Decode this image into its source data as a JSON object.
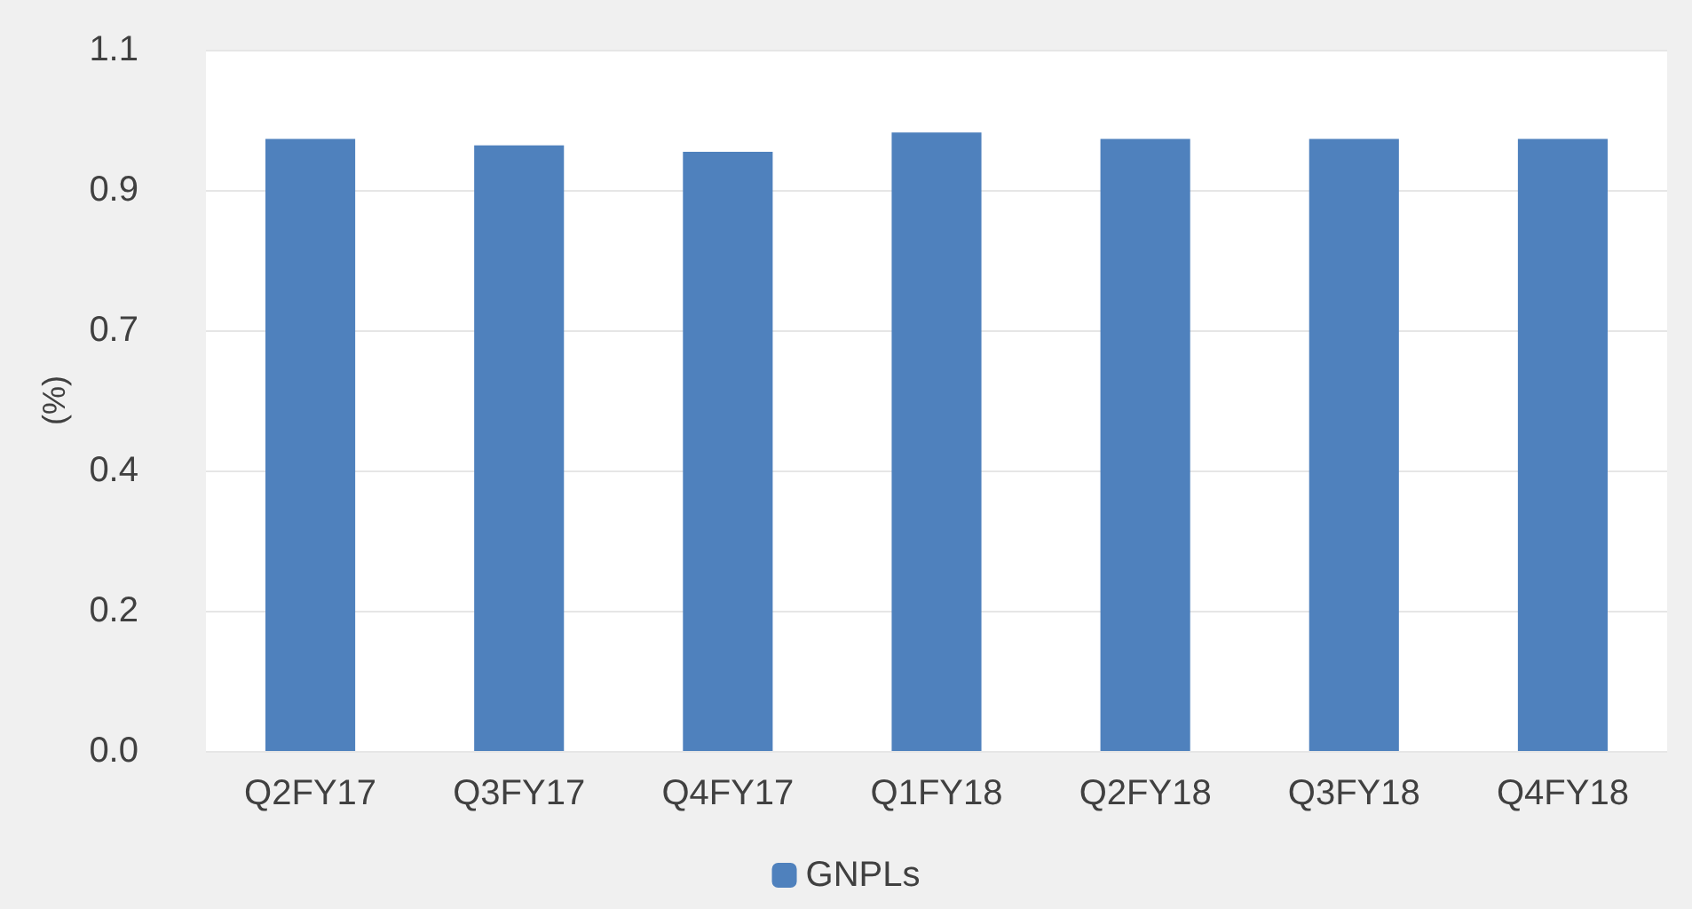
{
  "chart_data": {
    "type": "bar",
    "ylabel": "(%)",
    "categories": [
      "Q2FY17",
      "Q3FY17",
      "Q4FY17",
      "Q1FY18",
      "Q2FY18",
      "Q3FY18",
      "Q4FY18"
    ],
    "series": [
      {
        "name": "GNPLs",
        "color": "#4f81bd",
        "values": [
          0.96,
          0.95,
          0.94,
          0.97,
          0.96,
          0.96,
          0.96
        ]
      }
    ],
    "ylim": [
      0,
      1.1
    ],
    "yticks": [
      {
        "value": 0,
        "label": "0.0"
      },
      {
        "value": 0.22,
        "label": "0.2"
      },
      {
        "value": 0.44,
        "label": "0.4"
      },
      {
        "value": 0.66,
        "label": "0.7"
      },
      {
        "value": 0.88,
        "label": "0.9"
      },
      {
        "value": 1.1,
        "label": "1.1"
      }
    ],
    "grid": "y",
    "legend": "bottom"
  }
}
